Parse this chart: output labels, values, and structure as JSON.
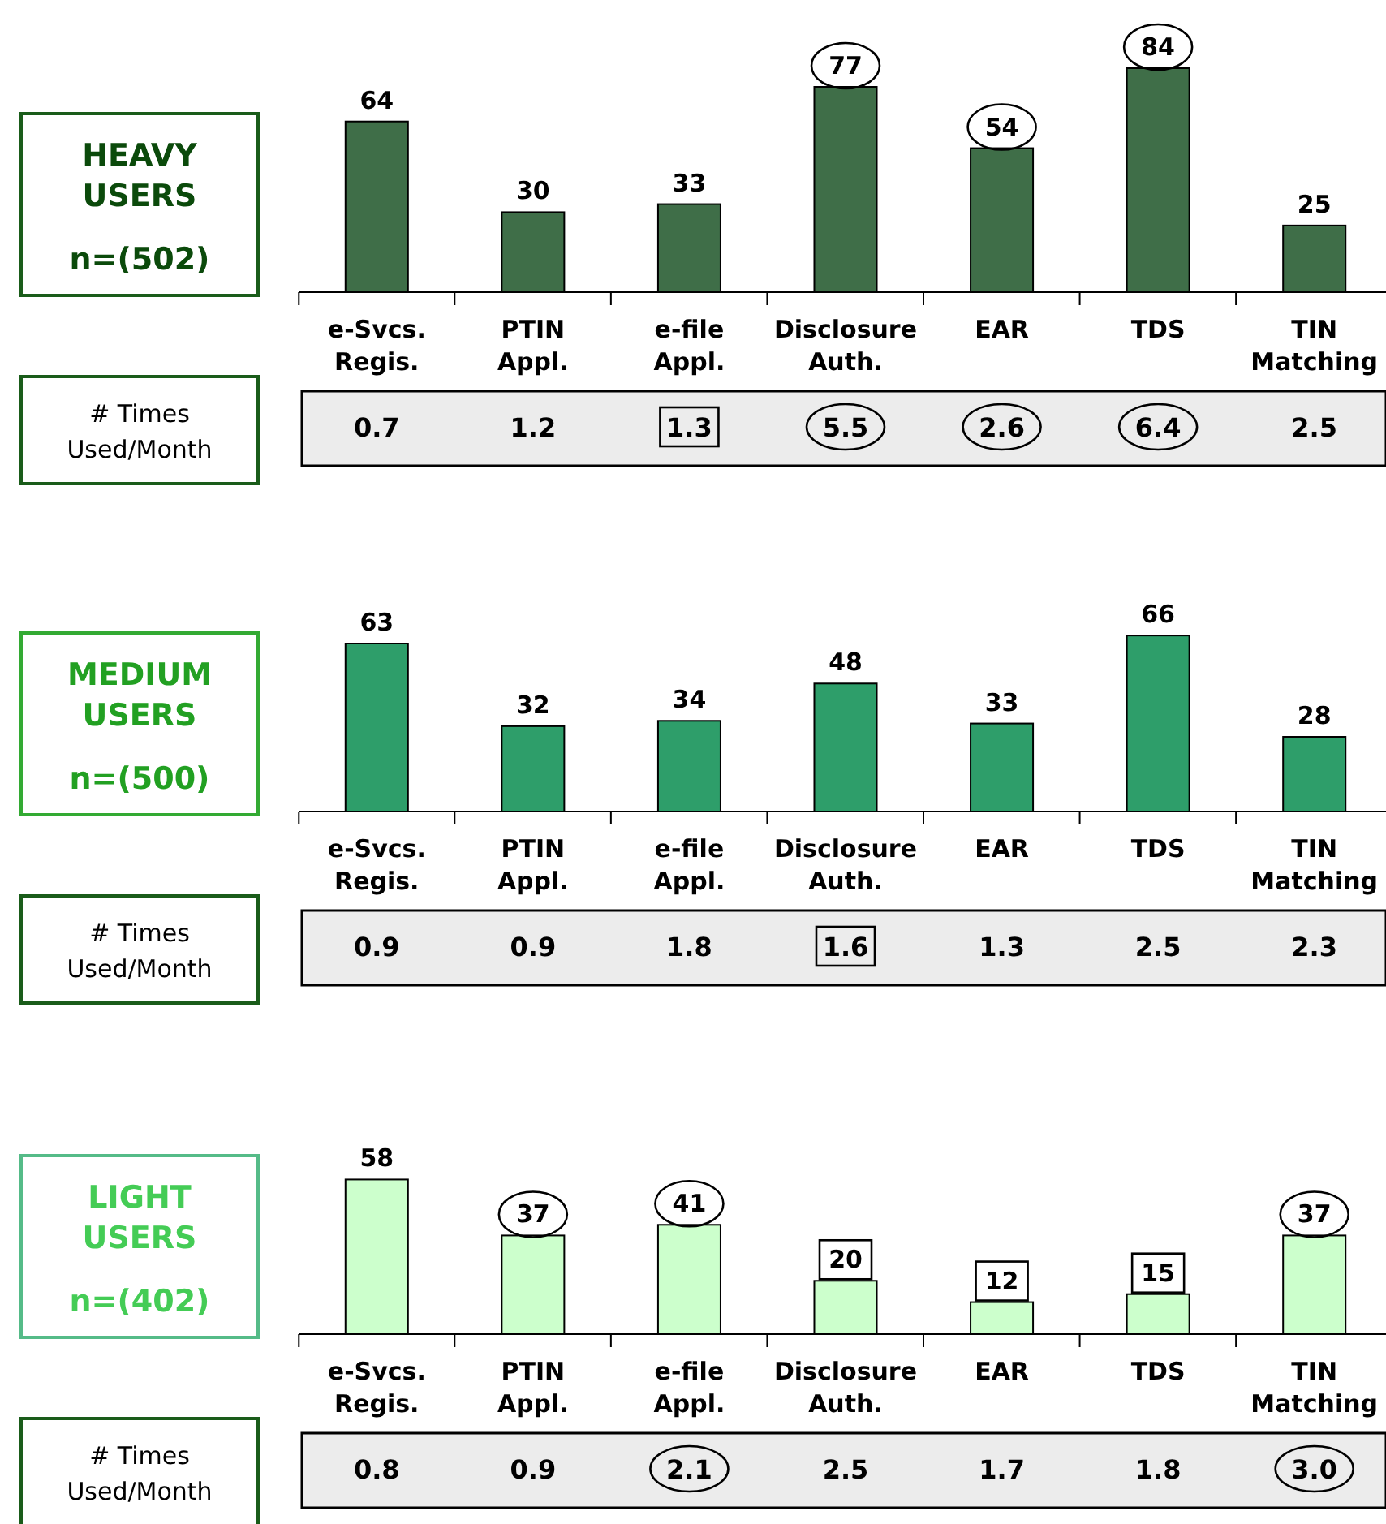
{
  "chart_data": [
    {
      "type": "bar",
      "title": "HEAVY USERS",
      "subtitle": "n=(502)",
      "categories": [
        "e-Svcs. Regis.",
        "PTIN Appl.",
        "e-file Appl.",
        "Disclosure Auth.",
        "EAR",
        "TDS",
        "TIN Matching"
      ],
      "values": [
        64,
        30,
        33,
        77,
        54,
        84,
        25
      ],
      "color": "#3f6e48",
      "data_labels": true
    },
    {
      "type": "other",
      "title": "# Times Used/Month",
      "values": [
        0.7,
        1.2,
        1.3,
        5.5,
        2.6,
        6.4,
        2.5
      ],
      "value_labels": [
        "0.7",
        "1.2",
        "1.3",
        "5.5",
        "2.6",
        "6.4",
        "2.5"
      ]
    },
    {
      "type": "bar",
      "title": "MEDIUM USERS",
      "subtitle": "n=(500)",
      "categories": [
        "e-Svcs. Regis.",
        "PTIN Appl.",
        "e-file Appl.",
        "Disclosure Auth.",
        "EAR",
        "TDS",
        "TIN Matching"
      ],
      "values": [
        63,
        32,
        34,
        48,
        33,
        66,
        28
      ],
      "color": "#2e9e6a",
      "data_labels": true
    },
    {
      "type": "other",
      "title": "# Times Used/Month",
      "values": [
        0.9,
        0.9,
        1.8,
        1.6,
        1.3,
        2.5,
        2.3
      ],
      "value_labels": [
        "0.9",
        "0.9",
        "1.8",
        "1.6",
        "1.3",
        "2.5",
        "2.3"
      ]
    },
    {
      "type": "bar",
      "title": "LIGHT USERS",
      "subtitle": "n=(402)",
      "categories": [
        "e-Svcs. Regis.",
        "PTIN Appl.",
        "e-file Appl.",
        "Disclosure Auth.",
        "EAR",
        "TDS",
        "TIN Matching"
      ],
      "values": [
        58,
        37,
        41,
        20,
        12,
        15,
        37
      ],
      "color": "#ccffcc",
      "data_labels": true
    },
    {
      "type": "other",
      "title": "# Times Used/Month",
      "values": [
        0.8,
        0.9,
        2.1,
        2.5,
        1.7,
        1.8,
        3.0
      ],
      "value_labels": [
        "0.8",
        "0.9",
        "2.1",
        "2.5",
        "1.7",
        "1.8",
        "3.0"
      ]
    }
  ]
}
